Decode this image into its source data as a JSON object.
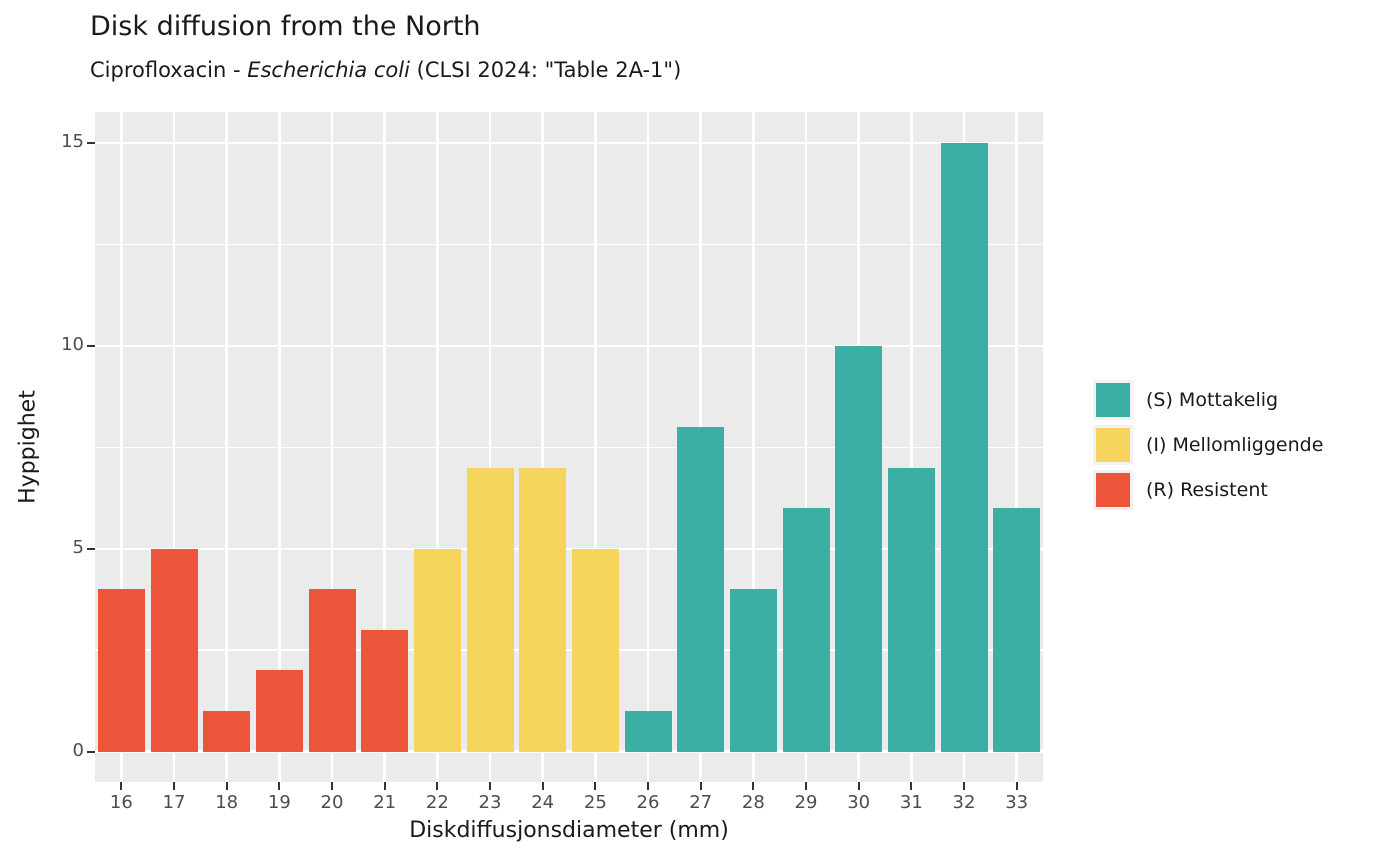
{
  "header": {
    "title": "Disk diffusion from the North",
    "subtitle_prefix": "Ciprofloxacin - ",
    "subtitle_italic": "Escherichia coli",
    "subtitle_suffix": " (CLSI 2024: \"Table 2A-1\")"
  },
  "chart_data": {
    "type": "bar",
    "title": "Disk diffusion from the North",
    "subtitle": "Ciprofloxacin - Escherichia coli (CLSI 2024: \"Table 2A-1\")",
    "xlabel": "Diskdiffusjonsdiameter (mm)",
    "ylabel": "Hyppighet",
    "categories": [
      16,
      17,
      18,
      19,
      20,
      21,
      22,
      23,
      24,
      25,
      26,
      27,
      28,
      29,
      30,
      31,
      32,
      33
    ],
    "values": [
      4,
      5,
      1,
      2,
      4,
      3,
      5,
      7,
      7,
      5,
      1,
      8,
      4,
      6,
      10,
      7,
      15,
      6
    ],
    "groups": [
      "R",
      "R",
      "R",
      "R",
      "R",
      "R",
      "I",
      "I",
      "I",
      "I",
      "S",
      "S",
      "S",
      "S",
      "S",
      "S",
      "S",
      "S"
    ],
    "group_colors": {
      "S": "#3CAEA3",
      "I": "#F6D55C",
      "R": "#ED553B"
    },
    "ylim": [
      0,
      15
    ],
    "yticks_major": [
      0,
      5,
      10,
      15
    ],
    "yticks_minor": [
      2.5,
      7.5,
      12.5
    ],
    "grid": true,
    "legend_position": "right"
  },
  "legend": {
    "items": [
      {
        "group": "S",
        "label": "(S) Mottakelig",
        "color": "#3CAEA3"
      },
      {
        "group": "I",
        "label": "(I) Mellomliggende",
        "color": "#F6D55C"
      },
      {
        "group": "R",
        "label": "(R) Resistent",
        "color": "#ED553B"
      }
    ]
  },
  "colors": {
    "panel_bg": "#EBEBEB",
    "gridline": "#FFFFFF",
    "tick_mark": "#333333",
    "tick_label": "#4D4D4D",
    "text": "#1A1A1A",
    "legend_key_bg": "#F2F2F2"
  }
}
